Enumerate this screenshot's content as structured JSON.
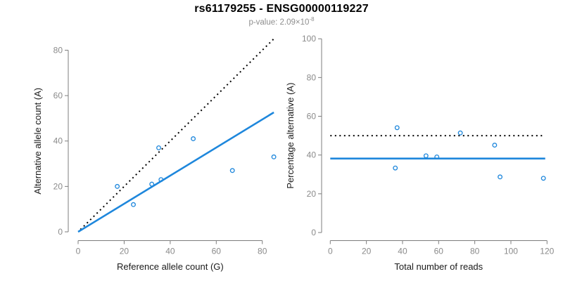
{
  "header": {
    "title": "rs61179255 - ENSG00000119227",
    "subtitle_text": "p-value: 2.09×10",
    "subtitle_exponent": "-8"
  },
  "colors": {
    "accent": "#1e87dc",
    "identity_line": "#000000",
    "axis_line": "#7d7d7d",
    "tick_label": "#8a8a8a",
    "axis_title": "#1a1a1a",
    "subtitle": "#8e8e8e"
  },
  "chart_data": [
    {
      "type": "scatter",
      "name": "allele-count-scatter",
      "xlabel": "Reference allele count (G)",
      "ylabel": "Alternative allele count (A)",
      "xlim": [
        0,
        85
      ],
      "ylim": [
        0,
        85
      ],
      "xticks": [
        0,
        20,
        40,
        60,
        80
      ],
      "yticks": [
        0,
        20,
        40,
        60,
        80
      ],
      "points": [
        [
          17,
          20
        ],
        [
          24,
          12
        ],
        [
          32,
          21
        ],
        [
          35,
          37
        ],
        [
          36,
          23
        ],
        [
          50,
          41
        ],
        [
          67,
          27
        ],
        [
          85,
          33
        ]
      ],
      "lines": [
        {
          "name": "identity-line",
          "style": "dotted",
          "color": "#000000",
          "from": [
            1,
            1
          ],
          "to": [
            85,
            85
          ]
        },
        {
          "name": "regression-line",
          "style": "solid",
          "color": "#1e87dc",
          "from": [
            0,
            0
          ],
          "to": [
            85,
            52.6
          ]
        }
      ]
    },
    {
      "type": "scatter",
      "name": "percentage-reads-scatter",
      "xlabel": "Total number of reads",
      "ylabel": "Percentage alternative (A)",
      "xlim": [
        0,
        120
      ],
      "ylim": [
        0,
        100
      ],
      "xticks": [
        0,
        20,
        40,
        60,
        80,
        100,
        120
      ],
      "yticks": [
        0,
        20,
        40,
        60,
        80,
        100
      ],
      "points": [
        [
          37,
          54.1
        ],
        [
          36,
          33.3
        ],
        [
          53,
          39.6
        ],
        [
          59,
          39
        ],
        [
          72,
          51.4
        ],
        [
          91,
          45.1
        ],
        [
          94,
          28.7
        ],
        [
          118,
          28
        ]
      ],
      "lines": [
        {
          "name": "expected-50pct-line",
          "style": "dotted",
          "color": "#000000",
          "from": [
            0,
            50
          ],
          "to": [
            118,
            50
          ]
        },
        {
          "name": "mean-pct-line",
          "style": "solid",
          "color": "#1e87dc",
          "from": [
            0,
            38.2
          ],
          "to": [
            119,
            38.2
          ]
        }
      ]
    }
  ]
}
